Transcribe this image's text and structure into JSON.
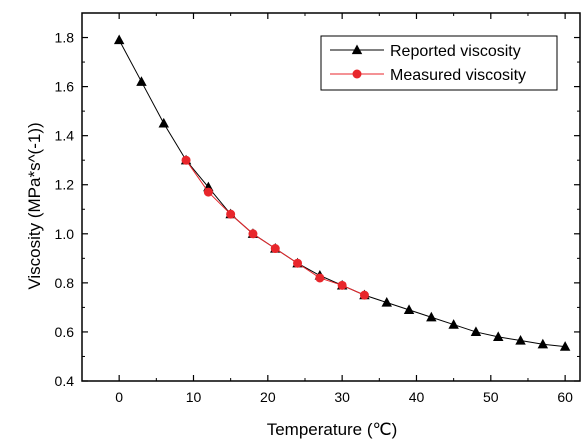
{
  "chart_data": {
    "type": "line",
    "xlabel": "Temperature (℃)",
    "ylabel": "Viscosity (MPa*s^(-1))",
    "xlim": [
      -5,
      62
    ],
    "ylim": [
      0.4,
      1.9
    ],
    "xticks": [
      0,
      10,
      20,
      30,
      40,
      50,
      60
    ],
    "yticks": [
      0.4,
      0.6,
      0.8,
      1.0,
      1.2,
      1.4,
      1.6,
      1.8
    ],
    "xtick_labels": [
      "0",
      "10",
      "20",
      "30",
      "40",
      "50",
      "60"
    ],
    "ytick_labels": [
      "0.4",
      "0.6",
      "0.8",
      "1.0",
      "1.2",
      "1.4",
      "1.6",
      "1.8"
    ],
    "grid": false,
    "legend_position": "top-right",
    "series": [
      {
        "name": "Reported viscosity",
        "marker": "triangle",
        "color": "#000000",
        "x": [
          0,
          3,
          6,
          9,
          12,
          15,
          18,
          21,
          24,
          27,
          30,
          33,
          36,
          39,
          42,
          45,
          48,
          51,
          54,
          57,
          60
        ],
        "y": [
          1.79,
          1.62,
          1.45,
          1.3,
          1.19,
          1.08,
          1.0,
          0.94,
          0.88,
          0.83,
          0.79,
          0.75,
          0.72,
          0.69,
          0.66,
          0.63,
          0.6,
          0.58,
          0.565,
          0.55,
          0.54
        ]
      },
      {
        "name": "Measured viscosity",
        "marker": "circle",
        "color": "#e8262b",
        "x": [
          9,
          12,
          15,
          18,
          21,
          24,
          27,
          30,
          33
        ],
        "y": [
          1.3,
          1.17,
          1.08,
          1.0,
          0.94,
          0.88,
          0.82,
          0.79,
          0.75
        ]
      }
    ]
  }
}
